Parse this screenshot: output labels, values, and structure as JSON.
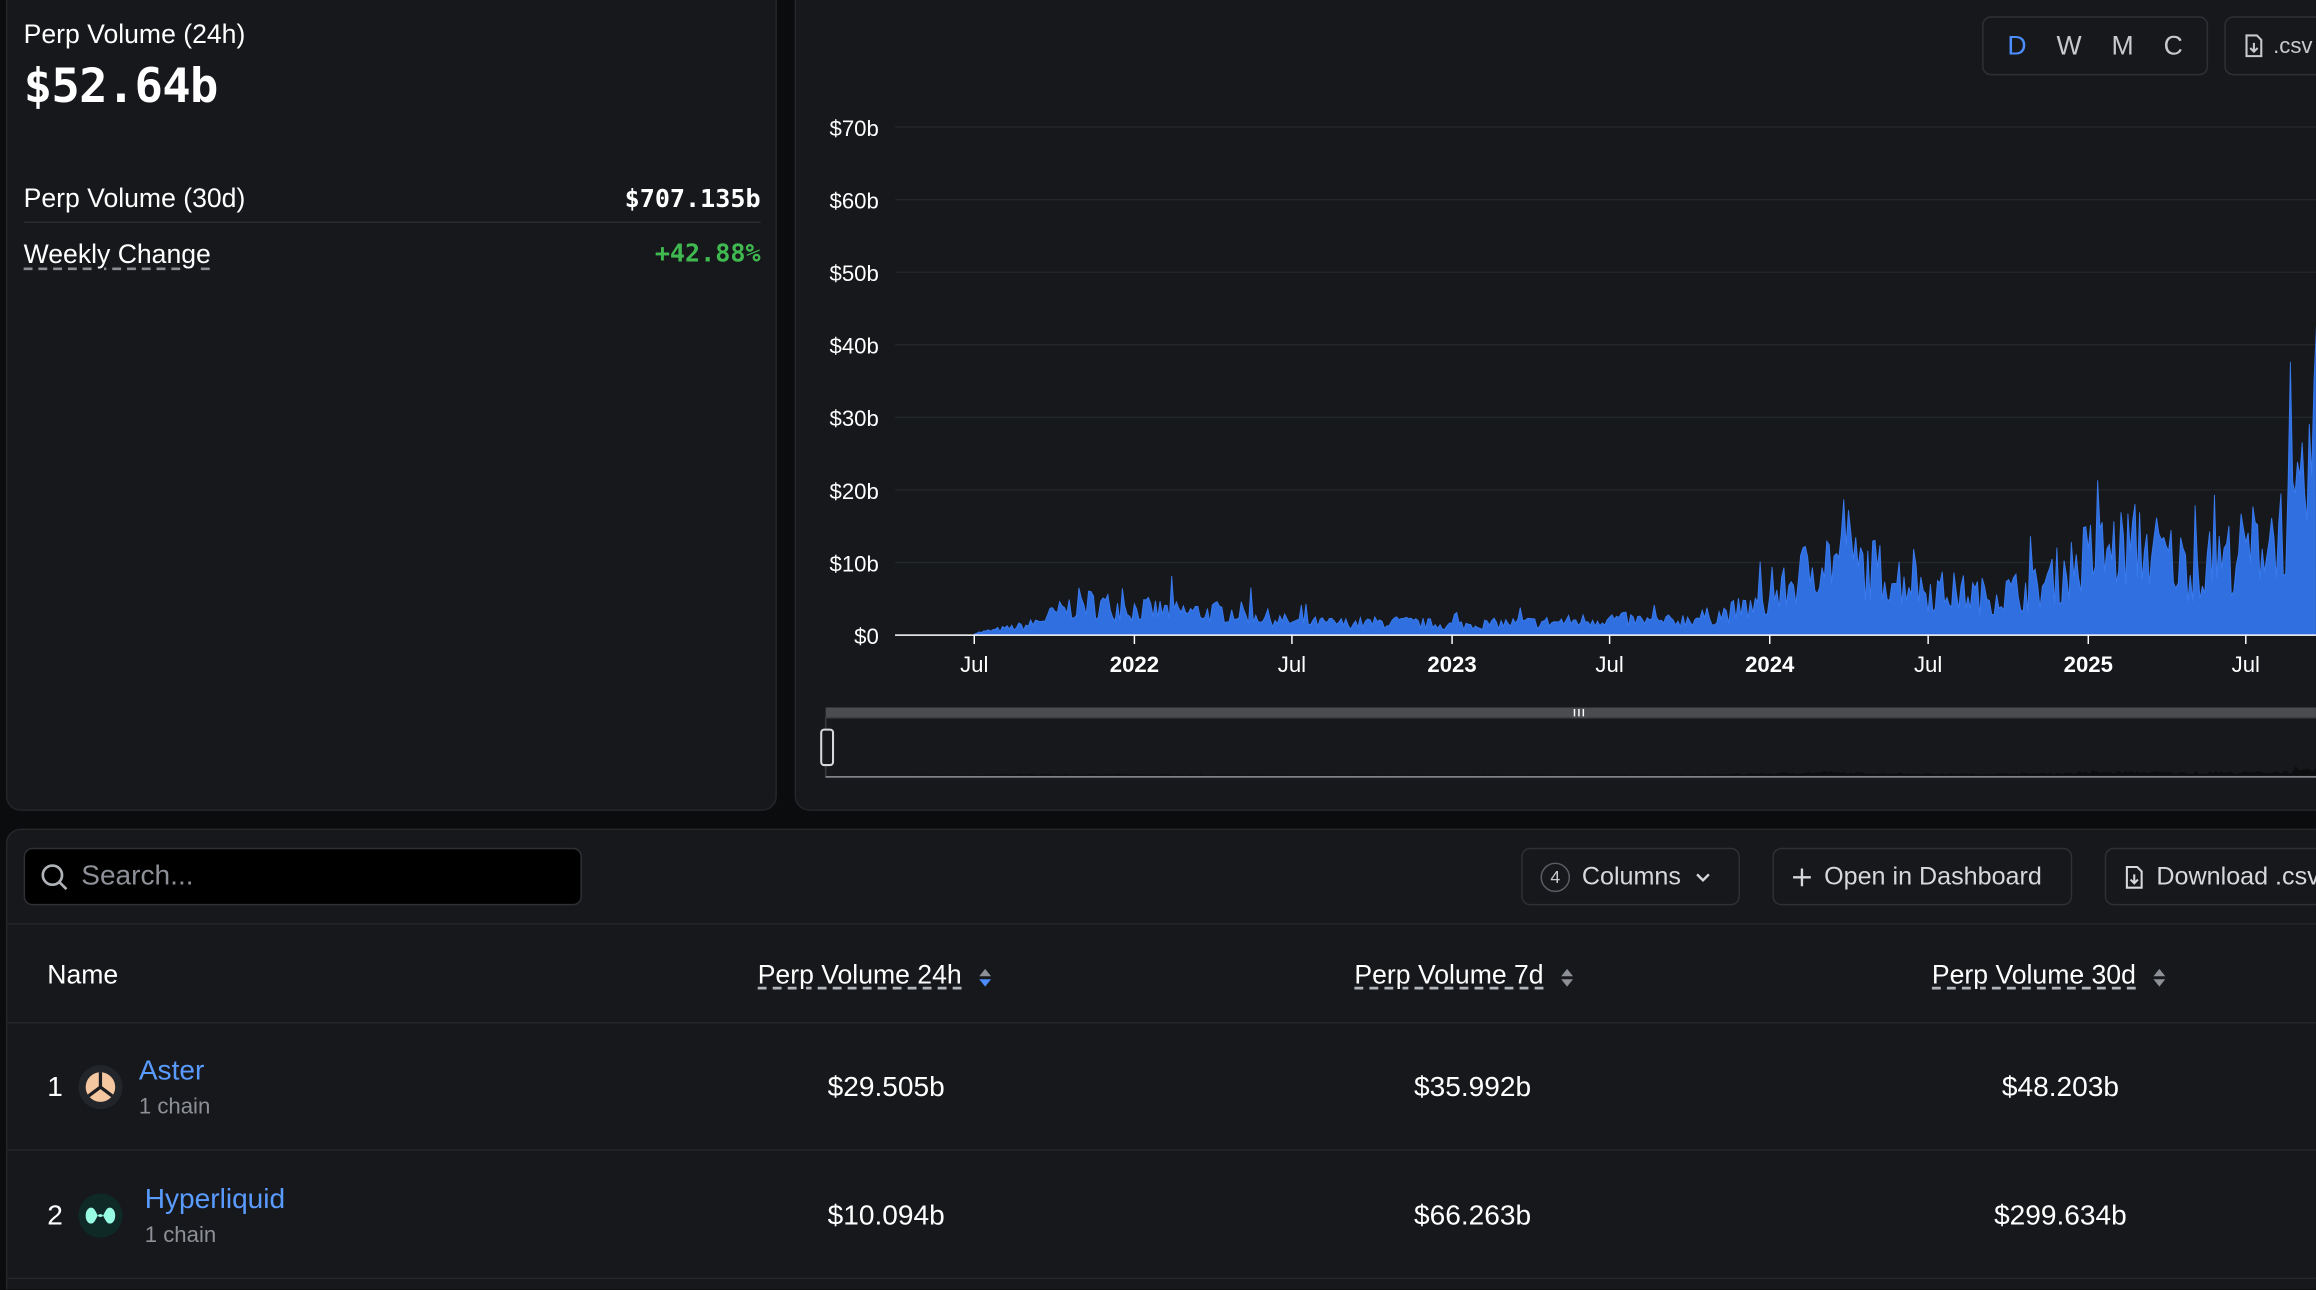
{
  "summary": {
    "label_24h": "Perp Volume (24h)",
    "value_24h": "$52.64b",
    "label_30d": "Perp Volume (30d)",
    "value_30d": "$707.135b",
    "label_weekly": "Weekly Change",
    "value_weekly": "+42.88%"
  },
  "chart_controls": {
    "granularity": [
      "D",
      "W",
      "M",
      "C"
    ],
    "active": "D",
    "csv_label": ".csv"
  },
  "chart_data": {
    "type": "area",
    "title": "",
    "xlabel": "",
    "ylabel": "",
    "y_ticks": [
      "$0",
      "$10b",
      "$20b",
      "$30b",
      "$40b",
      "$50b",
      "$60b",
      "$70b"
    ],
    "ylim": [
      0,
      70
    ],
    "x_ticks": [
      "Jul",
      "2022",
      "Jul",
      "2023",
      "Jul",
      "2024",
      "Jul",
      "2025",
      "Jul"
    ],
    "x": [
      "2021-07-01",
      "2021-09-01",
      "2021-11-01",
      "2022-01-01",
      "2022-03-01",
      "2022-05-01",
      "2022-07-01",
      "2022-09-01",
      "2022-11-01",
      "2023-01-01",
      "2023-03-01",
      "2023-05-01",
      "2023-07-01",
      "2023-09-01",
      "2023-11-01",
      "2024-01-01",
      "2024-03-01",
      "2024-05-01",
      "2024-07-01",
      "2024-09-01",
      "2024-11-01",
      "2025-01-01",
      "2025-03-01",
      "2025-05-01",
      "2025-07-01",
      "2025-09-01",
      "2025-10-01"
    ],
    "series": [
      {
        "values": [
          0.3,
          1.5,
          5,
          4,
          3.5,
          3.5,
          2,
          1.8,
          2,
          1.5,
          1.8,
          2,
          2.5,
          2,
          3,
          5,
          12,
          10,
          7,
          6,
          7,
          12,
          14,
          10,
          13,
          18,
          40
        ]
      }
    ],
    "grid": true,
    "legend": "none"
  },
  "table": {
    "search_placeholder": "Search...",
    "columns_count": "4",
    "columns_label": "Columns",
    "open_dashboard_label": "Open in Dashboard",
    "download_label": "Download .csv",
    "headers": {
      "name": "Name",
      "vol24h": "Perp Volume 24h",
      "vol7d": "Perp Volume 7d",
      "vol30d": "Perp Volume 30d"
    },
    "rows": [
      {
        "rank": "1",
        "name": "Aster",
        "chains": "1 chain",
        "vol24h": "$29.505b",
        "vol7d": "$35.992b",
        "vol30d": "$48.203b"
      },
      {
        "rank": "2",
        "name": "Hyperliquid",
        "chains": "1 chain",
        "vol24h": "$10.094b",
        "vol7d": "$66.263b",
        "vol30d": "$299.634b"
      }
    ]
  }
}
